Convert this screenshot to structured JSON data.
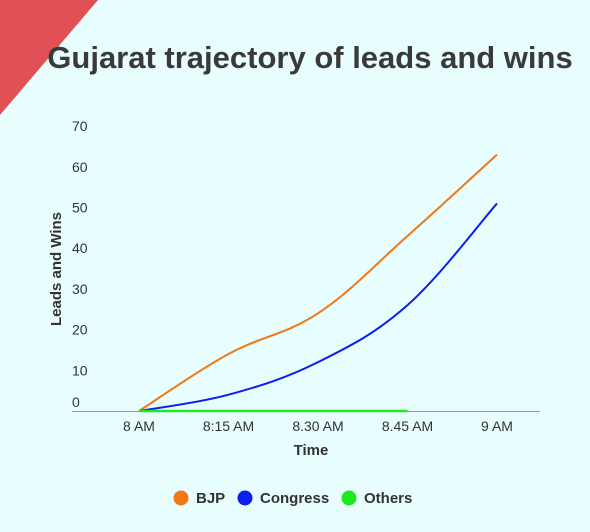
{
  "chart_data": {
    "type": "line",
    "title": "Gujarat trajectory of leads and wins",
    "xlabel": "Time",
    "ylabel": "Leads and Wins",
    "categories": [
      "8 AM",
      "8:15 AM",
      "8.30 AM",
      "8.45 AM",
      "9 AM"
    ],
    "yticks": [
      0,
      10,
      20,
      30,
      40,
      50,
      60,
      70
    ],
    "ylim": [
      0,
      70
    ],
    "grid": false,
    "legend_position": "bottom",
    "series": [
      {
        "name": "BJP",
        "color": "#f07817",
        "values": [
          0,
          14,
          24,
          43,
          63
        ]
      },
      {
        "name": "Congress",
        "color": "#0a1ef0",
        "values": [
          0,
          4,
          12,
          26,
          51
        ]
      },
      {
        "name": "Others",
        "color": "#1ee81e",
        "values": [
          0,
          0,
          0,
          0,
          null
        ]
      }
    ]
  },
  "decor": {
    "corner_color": "#e05055",
    "background": "#e8fdfd"
  }
}
